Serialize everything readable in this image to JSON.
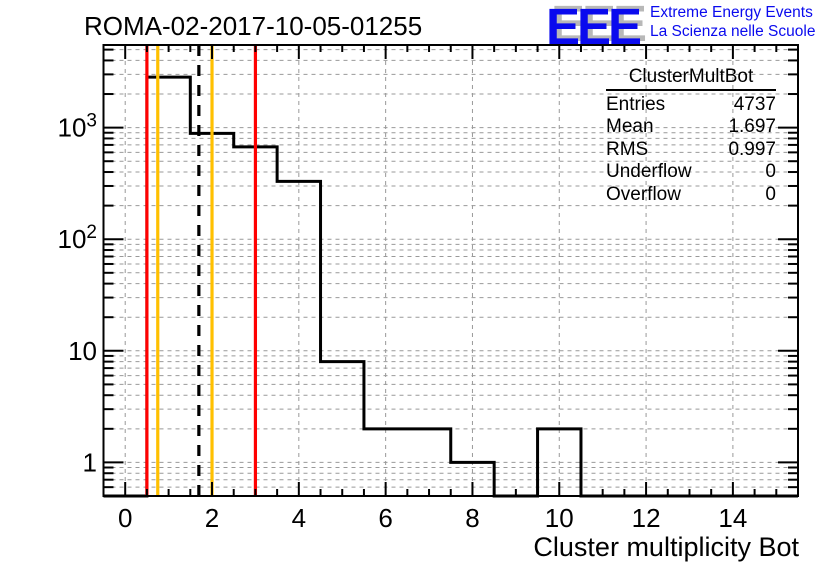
{
  "header": {
    "title": "ROMA-02-2017-10-05-01255"
  },
  "logo": {
    "eee": "EEE",
    "line1": "Extreme Energy Events",
    "line2": "La Scienza nelle Scuole",
    "text_color": "#0a0aee",
    "shadow_color": "#b8b8b8"
  },
  "stats_box": {
    "title": "ClusterMultBot",
    "rows": [
      {
        "label": "Entries",
        "value": "4737"
      },
      {
        "label": "Mean",
        "value": "1.697"
      },
      {
        "label": "RMS",
        "value": "0.997"
      },
      {
        "label": "Underflow",
        "value": "0"
      },
      {
        "label": "Overflow",
        "value": "0"
      }
    ]
  },
  "chart_data": {
    "type": "bar",
    "name": "ClusterMultBot",
    "title": "ROMA-02-2017-10-05-01255",
    "xlabel": "Cluster multiplicity Bot",
    "ylabel": "",
    "bin_width": 1,
    "bin_centers": [
      0,
      1,
      2,
      3,
      4,
      5,
      6,
      7,
      8,
      9,
      10,
      11,
      12,
      13,
      14,
      15
    ],
    "counts": [
      0,
      2832,
      887,
      673,
      330,
      8,
      2,
      2,
      1,
      0,
      2,
      0,
      0,
      0,
      0,
      0
    ],
    "entries": 4737,
    "mean": 1.697,
    "rms": 0.997,
    "underflow": 0,
    "overflow": 0,
    "xlim": [
      -0.5,
      15.5
    ],
    "ylim": [
      0.5,
      5500
    ],
    "y_scale": "log",
    "x_major_ticks": [
      0,
      2,
      4,
      6,
      8,
      10,
      12,
      14
    ],
    "x_minor_tick_step": 0.5,
    "y_major_ticks": [
      1,
      10,
      100,
      1000
    ],
    "grid": true,
    "grid_color": "#999999",
    "grid_style": "dashed",
    "line_color": "#000000",
    "frame_color": "#000000",
    "marker_lines": [
      {
        "name": "red-cut-line-left",
        "x": 0.5,
        "color": "#ff0000",
        "style": "solid"
      },
      {
        "name": "yellow-cut-line-left",
        "x": 0.75,
        "color": "#ffc000",
        "style": "solid"
      },
      {
        "name": "mean-dashed-line",
        "x": 1.697,
        "color": "#000000",
        "style": "dashed"
      },
      {
        "name": "yellow-cut-line-right",
        "x": 2.0,
        "color": "#ffc000",
        "style": "solid"
      },
      {
        "name": "red-cut-line-right",
        "x": 3.0,
        "color": "#ff0000",
        "style": "solid"
      }
    ]
  }
}
